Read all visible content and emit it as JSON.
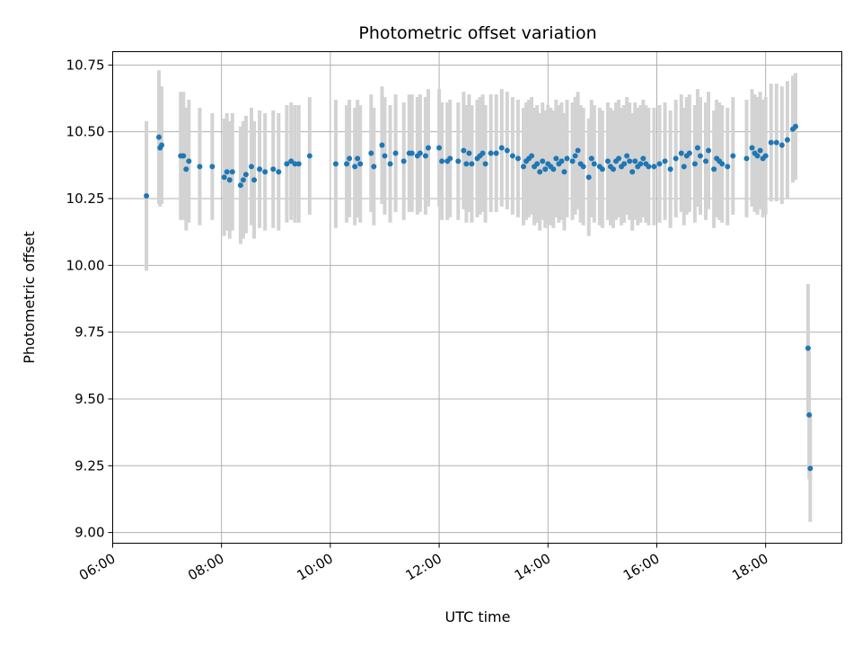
{
  "chart_data": {
    "type": "scatter",
    "title": "Photometric offset variation",
    "xlabel": "UTC time",
    "ylabel": "Photometric offset",
    "xlim": [
      6.0,
      19.4
    ],
    "ylim": [
      8.96,
      10.8
    ],
    "x_unit": "hours UTC",
    "x_ticks": [
      6,
      8,
      10,
      12,
      14,
      16,
      18
    ],
    "x_tick_labels": [
      "06:00",
      "08:00",
      "10:00",
      "12:00",
      "14:00",
      "16:00",
      "18:00"
    ],
    "y_ticks": [
      9.0,
      9.25,
      9.5,
      9.75,
      10.0,
      10.25,
      10.5,
      10.75
    ],
    "y_tick_labels": [
      "9.00",
      "9.25",
      "9.50",
      "9.75",
      "10.00",
      "10.25",
      "10.50",
      "10.75"
    ],
    "grid": true,
    "colors": {
      "points": "#1f77b4",
      "errorbars": "#d3d3d3",
      "grid": "#b0b0b0"
    },
    "series": [
      {
        "x": [
          6.62,
          6.85,
          6.87,
          6.9,
          7.25,
          7.3,
          7.35,
          7.4,
          7.6,
          7.83,
          8.05,
          8.1,
          8.15,
          8.2,
          8.35,
          8.4,
          8.45,
          8.55,
          8.6,
          8.7,
          8.8,
          8.95,
          9.05,
          9.2,
          9.28,
          9.35,
          9.42,
          9.62,
          10.1,
          10.3,
          10.35,
          10.45,
          10.5,
          10.55,
          10.75,
          10.8,
          10.95,
          11.0,
          11.1,
          11.2,
          11.35,
          11.45,
          11.5,
          11.6,
          11.65,
          11.75,
          11.8,
          12.0,
          12.05,
          12.15,
          12.2,
          12.35,
          12.45,
          12.5,
          12.55,
          12.6,
          12.7,
          12.75,
          12.8,
          12.85,
          12.95,
          13.05,
          13.15,
          13.25,
          13.35,
          13.45,
          13.55,
          13.6,
          13.65,
          13.7,
          13.75,
          13.8,
          13.85,
          13.9,
          13.95,
          14.0,
          14.05,
          14.1,
          14.15,
          14.2,
          14.25,
          14.3,
          14.35,
          14.45,
          14.5,
          14.55,
          14.6,
          14.65,
          14.75,
          14.8,
          14.85,
          14.95,
          15.0,
          15.1,
          15.15,
          15.2,
          15.25,
          15.3,
          15.35,
          15.4,
          15.45,
          15.5,
          15.55,
          15.6,
          15.65,
          15.7,
          15.75,
          15.8,
          15.85,
          15.95,
          16.05,
          16.15,
          16.25,
          16.35,
          16.45,
          16.5,
          16.55,
          16.6,
          16.7,
          16.75,
          16.8,
          16.9,
          16.95,
          17.05,
          17.1,
          17.15,
          17.2,
          17.3,
          17.4,
          17.65,
          17.75,
          17.8,
          17.85,
          17.9,
          17.95,
          18.0,
          18.1,
          18.2,
          18.3,
          18.4,
          18.5,
          18.55,
          18.78,
          18.8,
          18.82
        ],
        "y": [
          10.26,
          10.48,
          10.44,
          10.45,
          10.41,
          10.41,
          10.36,
          10.39,
          10.37,
          10.37,
          10.33,
          10.35,
          10.32,
          10.35,
          10.3,
          10.32,
          10.34,
          10.37,
          10.32,
          10.36,
          10.35,
          10.36,
          10.35,
          10.38,
          10.39,
          10.38,
          10.38,
          10.41,
          10.38,
          10.38,
          10.4,
          10.37,
          10.4,
          10.38,
          10.42,
          10.37,
          10.45,
          10.41,
          10.38,
          10.42,
          10.39,
          10.42,
          10.42,
          10.41,
          10.42,
          10.41,
          10.44,
          10.44,
          10.39,
          10.39,
          10.4,
          10.39,
          10.43,
          10.38,
          10.42,
          10.38,
          10.4,
          10.41,
          10.42,
          10.38,
          10.42,
          10.42,
          10.44,
          10.43,
          10.41,
          10.4,
          10.37,
          10.39,
          10.4,
          10.41,
          10.37,
          10.38,
          10.35,
          10.39,
          10.36,
          10.38,
          10.37,
          10.36,
          10.4,
          10.38,
          10.39,
          10.35,
          10.4,
          10.39,
          10.41,
          10.43,
          10.38,
          10.37,
          10.33,
          10.4,
          10.38,
          10.37,
          10.36,
          10.39,
          10.37,
          10.36,
          10.39,
          10.4,
          10.37,
          10.38,
          10.41,
          10.39,
          10.35,
          10.39,
          10.37,
          10.38,
          10.4,
          10.38,
          10.37,
          10.37,
          10.38,
          10.39,
          10.36,
          10.4,
          10.42,
          10.37,
          10.41,
          10.42,
          10.38,
          10.44,
          10.41,
          10.39,
          10.43,
          10.36,
          10.4,
          10.39,
          10.38,
          10.37,
          10.41,
          10.4,
          10.44,
          10.42,
          10.41,
          10.43,
          10.4,
          10.41,
          10.46,
          10.46,
          10.45,
          10.47,
          10.51,
          10.52,
          9.69,
          9.44,
          9.24
        ],
        "err": [
          0.28,
          0.25,
          0.22,
          0.22,
          0.24,
          0.24,
          0.23,
          0.23,
          0.22,
          0.2,
          0.22,
          0.22,
          0.22,
          0.22,
          0.22,
          0.22,
          0.22,
          0.22,
          0.22,
          0.22,
          0.22,
          0.22,
          0.22,
          0.22,
          0.22,
          0.22,
          0.22,
          0.22,
          0.24,
          0.22,
          0.22,
          0.22,
          0.22,
          0.22,
          0.22,
          0.22,
          0.22,
          0.22,
          0.22,
          0.22,
          0.22,
          0.22,
          0.22,
          0.22,
          0.22,
          0.22,
          0.22,
          0.22,
          0.22,
          0.22,
          0.22,
          0.22,
          0.22,
          0.22,
          0.22,
          0.22,
          0.22,
          0.22,
          0.22,
          0.22,
          0.22,
          0.22,
          0.22,
          0.22,
          0.22,
          0.22,
          0.22,
          0.22,
          0.22,
          0.22,
          0.22,
          0.22,
          0.22,
          0.22,
          0.22,
          0.22,
          0.22,
          0.22,
          0.22,
          0.22,
          0.22,
          0.22,
          0.22,
          0.22,
          0.22,
          0.22,
          0.22,
          0.22,
          0.22,
          0.22,
          0.22,
          0.22,
          0.22,
          0.22,
          0.22,
          0.22,
          0.22,
          0.22,
          0.22,
          0.22,
          0.22,
          0.22,
          0.22,
          0.22,
          0.22,
          0.22,
          0.22,
          0.22,
          0.22,
          0.22,
          0.22,
          0.22,
          0.22,
          0.22,
          0.22,
          0.22,
          0.22,
          0.22,
          0.22,
          0.22,
          0.22,
          0.22,
          0.22,
          0.22,
          0.22,
          0.22,
          0.22,
          0.22,
          0.22,
          0.22,
          0.22,
          0.22,
          0.22,
          0.22,
          0.22,
          0.22,
          0.22,
          0.22,
          0.22,
          0.22,
          0.2,
          0.2,
          0.24,
          0.24,
          0.2
        ]
      }
    ]
  }
}
